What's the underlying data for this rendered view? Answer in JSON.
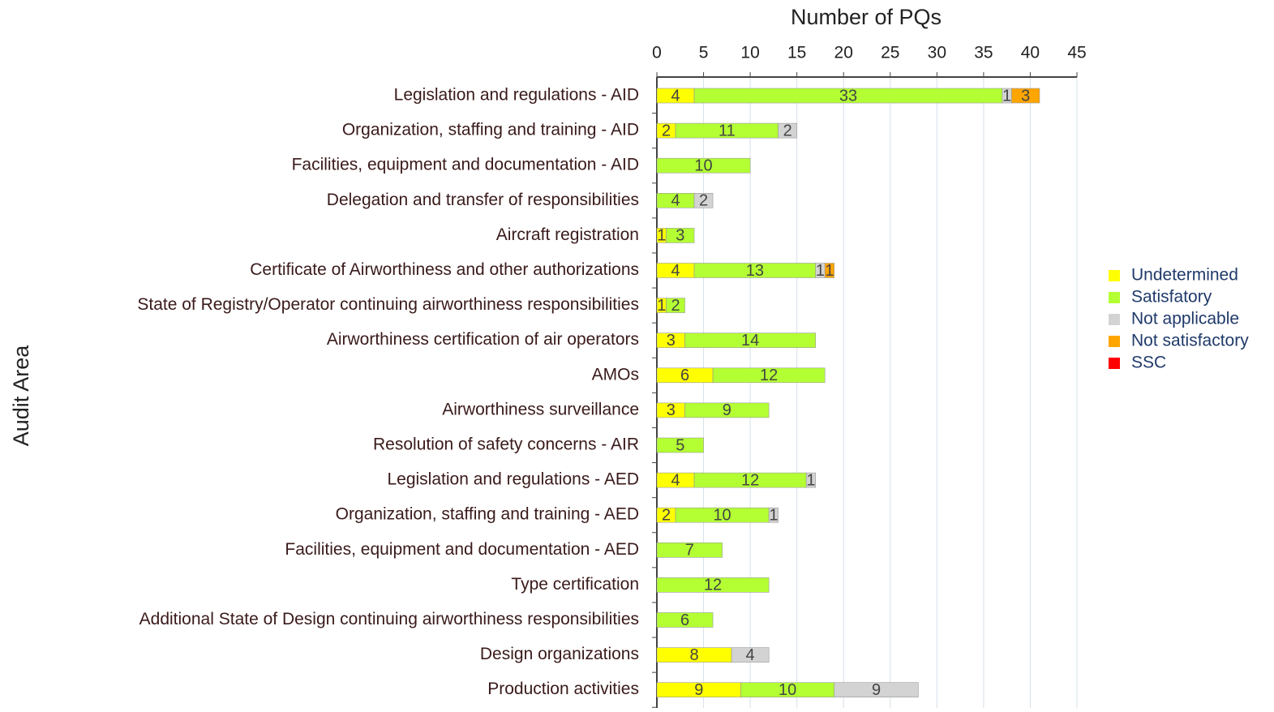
{
  "chart_data": {
    "type": "stacked_bar_horizontal",
    "xlabel": "Number of PQs",
    "ylabel": "Audit Area",
    "categories": [
      "Legislation and regulations - AID",
      "Organization, staffing and training - AID",
      "Facilities, equipment and documentation - AID",
      "Delegation and transfer of responsibilities",
      "Aircraft registration",
      "Certificate of Airworthiness and other authorizations",
      "State of Registry/Operator continuing airworthiness responsibilities",
      "Airworthiness certification of air operators",
      "AMOs",
      "Airworthiness surveillance",
      "Resolution of safety concerns - AIR",
      "Legislation and regulations - AED",
      "Organization, staffing and training - AED",
      "Facilities, equipment and documentation - AED",
      "Type certification",
      "Additional State of Design continuing airworthiness responsibilities",
      "Design organizations",
      "Production activities"
    ],
    "series": [
      {
        "name": "Undetermined",
        "color": "#ffff00",
        "values": [
          4,
          2,
          null,
          null,
          1,
          4,
          1,
          3,
          6,
          3,
          null,
          4,
          2,
          null,
          null,
          null,
          8,
          9
        ]
      },
      {
        "name": "Satisfatory",
        "color": "#b3ff33",
        "values": [
          33,
          11,
          10,
          4,
          3,
          13,
          2,
          14,
          12,
          9,
          5,
          12,
          10,
          7,
          12,
          6,
          null,
          10
        ]
      },
      {
        "name": "Not applicable",
        "color": "#d3d3d3",
        "values": [
          1,
          2,
          null,
          2,
          null,
          1,
          null,
          null,
          null,
          null,
          null,
          1,
          1,
          null,
          null,
          null,
          4,
          9
        ]
      },
      {
        "name": "Not satisfactory",
        "color": "#ffa500",
        "values": [
          3,
          null,
          null,
          null,
          null,
          1,
          null,
          null,
          null,
          null,
          null,
          null,
          null,
          null,
          null,
          null,
          null,
          null
        ]
      },
      {
        "name": "SSC",
        "color": "#ff0000",
        "values": [
          null,
          null,
          null,
          null,
          null,
          null,
          null,
          null,
          null,
          null,
          null,
          null,
          null,
          null,
          null,
          null,
          null,
          null
        ]
      }
    ],
    "xlim": [
      0,
      45
    ],
    "xticks": [
      0,
      5,
      10,
      15,
      20,
      25,
      30,
      35,
      40,
      45
    ],
    "grid": true,
    "legend": "right"
  }
}
